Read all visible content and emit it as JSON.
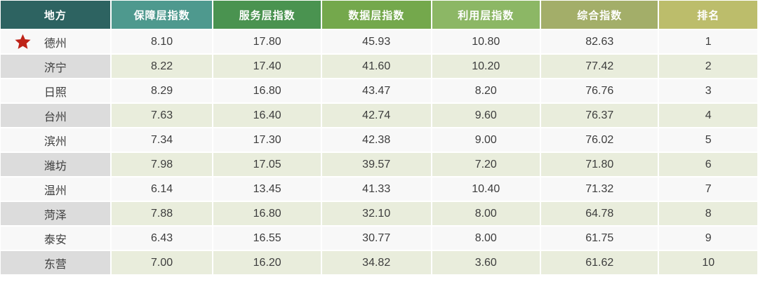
{
  "table": {
    "columns": [
      {
        "label": "地方",
        "bg": "#2d6361"
      },
      {
        "label": "保障层指数",
        "bg": "#4e998e"
      },
      {
        "label": "服务层指数",
        "bg": "#4a9350"
      },
      {
        "label": "数据层指数",
        "bg": "#74a84c"
      },
      {
        "label": "利用层指数",
        "bg": "#8cb765"
      },
      {
        "label": "综合指数",
        "bg": "#a3ae69"
      },
      {
        "label": "排名",
        "bg": "#bcbd6b"
      }
    ],
    "rows": [
      {
        "city": "德州",
        "starred": true,
        "values": [
          "8.10",
          "17.80",
          "45.93",
          "10.80",
          "82.63",
          "1"
        ]
      },
      {
        "city": "济宁",
        "starred": false,
        "values": [
          "8.22",
          "17.40",
          "41.60",
          "10.20",
          "77.42",
          "2"
        ]
      },
      {
        "city": "日照",
        "starred": false,
        "values": [
          "8.29",
          "16.80",
          "43.47",
          "8.20",
          "76.76",
          "3"
        ]
      },
      {
        "city": "台州",
        "starred": false,
        "values": [
          "7.63",
          "16.40",
          "42.74",
          "9.60",
          "76.37",
          "4"
        ]
      },
      {
        "city": "滨州",
        "starred": false,
        "values": [
          "7.34",
          "17.30",
          "42.38",
          "9.00",
          "76.02",
          "5"
        ]
      },
      {
        "city": "潍坊",
        "starred": false,
        "values": [
          "7.98",
          "17.05",
          "39.57",
          "7.20",
          "71.80",
          "6"
        ]
      },
      {
        "city": "温州",
        "starred": false,
        "values": [
          "6.14",
          "13.45",
          "41.33",
          "10.40",
          "71.32",
          "7"
        ]
      },
      {
        "city": "菏泽",
        "starred": false,
        "values": [
          "7.88",
          "16.80",
          "32.10",
          "8.00",
          "64.78",
          "8"
        ]
      },
      {
        "city": "泰安",
        "starred": false,
        "values": [
          "6.43",
          "16.55",
          "30.77",
          "8.00",
          "61.75",
          "9"
        ]
      },
      {
        "city": "东营",
        "starred": false,
        "values": [
          "7.00",
          "16.20",
          "34.82",
          "3.60",
          "61.62",
          "10"
        ]
      }
    ]
  },
  "icons": {
    "star": "★"
  },
  "colors": {
    "header_text": "#ffffff",
    "body_text": "#3d3d3d",
    "row_odd_bg": "#f8f8f8",
    "row_even_city_bg": "#dcdcdc",
    "row_even_data_bg": "#e9eddc",
    "separator": "#ffffff",
    "star": "#be2318"
  },
  "chart_data": {
    "type": "table",
    "columns": [
      "地方",
      "保障层指数",
      "服务层指数",
      "数据层指数",
      "利用层指数",
      "综合指数",
      "排名"
    ],
    "rows": [
      [
        "德州",
        8.1,
        17.8,
        45.93,
        10.8,
        82.63,
        1
      ],
      [
        "济宁",
        8.22,
        17.4,
        41.6,
        10.2,
        77.42,
        2
      ],
      [
        "日照",
        8.29,
        16.8,
        43.47,
        8.2,
        76.76,
        3
      ],
      [
        "台州",
        7.63,
        16.4,
        42.74,
        9.6,
        76.37,
        4
      ],
      [
        "滨州",
        7.34,
        17.3,
        42.38,
        9.0,
        76.02,
        5
      ],
      [
        "潍坊",
        7.98,
        17.05,
        39.57,
        7.2,
        71.8,
        6
      ],
      [
        "温州",
        6.14,
        13.45,
        41.33,
        10.4,
        71.32,
        7
      ],
      [
        "菏泽",
        7.88,
        16.8,
        32.1,
        8.0,
        64.78,
        8
      ],
      [
        "泰安",
        6.43,
        16.55,
        30.77,
        8.0,
        61.75,
        9
      ],
      [
        "东营",
        7.0,
        16.2,
        34.82,
        3.6,
        61.62,
        10
      ]
    ],
    "highlighted_row": "德州",
    "legend_position": "none",
    "grid": true
  }
}
